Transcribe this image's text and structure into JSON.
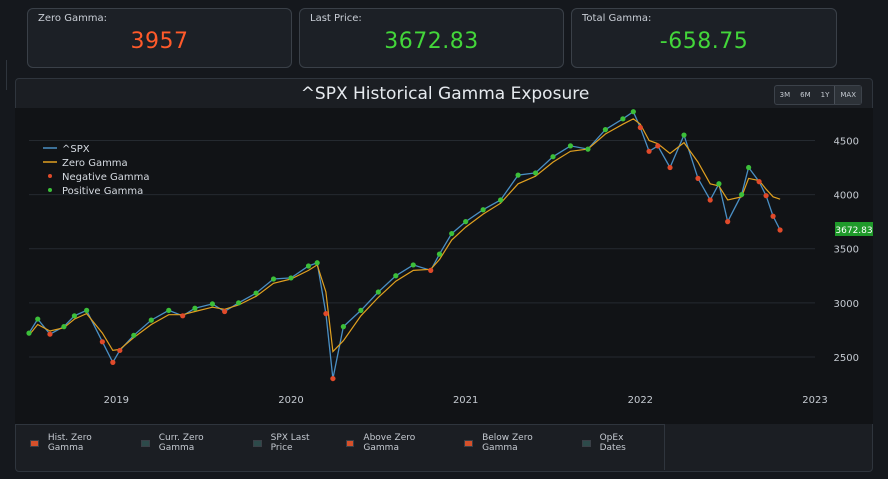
{
  "stats": {
    "zero_gamma": {
      "label": "Zero Gamma:",
      "value": "3957",
      "color": "#ff5a2a"
    },
    "last_price": {
      "label": "Last Price:",
      "value": "3672.83",
      "color": "#43d63a"
    },
    "total_gamma": {
      "label": "Total Gamma:",
      "value": "-658.75",
      "color": "#43d63a"
    }
  },
  "range_buttons": [
    "3M",
    "6M",
    "1Y",
    "MAX"
  ],
  "range_selected": "MAX",
  "bottom_legend": [
    {
      "label": "Hist. Zero Gamma",
      "color": "#d5502a"
    },
    {
      "label": "Curr. Zero Gamma",
      "color": "#2d4a4a"
    },
    {
      "label": "SPX Last Price",
      "color": "#2d4a4a"
    },
    {
      "label": "Above Zero Gamma",
      "color": "#d5502a"
    },
    {
      "label": "Below Zero Gamma",
      "color": "#d5502a"
    },
    {
      "label": "OpEx Dates",
      "color": "#2d4a4a"
    }
  ],
  "chart_data": {
    "type": "line",
    "title": "^SPX Historical Gamma Exposure",
    "xlabel": "",
    "ylabel": "",
    "x_tick_labels": [
      "2019",
      "2020",
      "2021",
      "2022",
      "2023"
    ],
    "y_tick_labels": [
      "2500",
      "3000",
      "3500",
      "4000",
      "4500"
    ],
    "xlim": [
      2018.5,
      2023.0
    ],
    "ylim": [
      2250,
      4800
    ],
    "legend_position": "top-left",
    "last_price_label": "3672.83",
    "series": [
      {
        "name": "^SPX",
        "color": "#4a8fc4",
        "x": [
          2018.5,
          2018.55,
          2018.62,
          2018.7,
          2018.76,
          2018.83,
          2018.92,
          2018.98,
          2019.02,
          2019.1,
          2019.2,
          2019.3,
          2019.38,
          2019.45,
          2019.55,
          2019.62,
          2019.7,
          2019.8,
          2019.9,
          2020.0,
          2020.1,
          2020.15,
          2020.2,
          2020.24,
          2020.3,
          2020.4,
          2020.5,
          2020.6,
          2020.7,
          2020.8,
          2020.85,
          2020.92,
          2021.0,
          2021.1,
          2021.2,
          2021.3,
          2021.4,
          2021.5,
          2021.6,
          2021.7,
          2021.8,
          2021.9,
          2021.96,
          2022.0,
          2022.05,
          2022.1,
          2022.17,
          2022.25,
          2022.33,
          2022.4,
          2022.45,
          2022.5,
          2022.58,
          2022.62,
          2022.68,
          2022.72,
          2022.76,
          2022.8
        ],
        "values": [
          2720,
          2850,
          2710,
          2780,
          2880,
          2930,
          2640,
          2450,
          2560,
          2700,
          2840,
          2930,
          2880,
          2950,
          2990,
          2920,
          3000,
          3090,
          3220,
          3230,
          3340,
          3370,
          2900,
          2300,
          2780,
          2930,
          3100,
          3250,
          3350,
          3300,
          3450,
          3640,
          3750,
          3860,
          3950,
          4180,
          4200,
          4350,
          4450,
          4420,
          4600,
          4700,
          4766,
          4620,
          4400,
          4450,
          4250,
          4550,
          4150,
          3950,
          4100,
          3750,
          4000,
          4250,
          4120,
          3990,
          3800,
          3672.83
        ]
      },
      {
        "name": "Zero Gamma",
        "color": "#e0a020",
        "x": [
          2018.5,
          2018.55,
          2018.62,
          2018.7,
          2018.76,
          2018.83,
          2018.92,
          2018.98,
          2019.02,
          2019.1,
          2019.2,
          2019.3,
          2019.38,
          2019.45,
          2019.55,
          2019.62,
          2019.7,
          2019.8,
          2019.9,
          2020.0,
          2020.1,
          2020.15,
          2020.2,
          2020.24,
          2020.3,
          2020.4,
          2020.5,
          2020.6,
          2020.7,
          2020.8,
          2020.85,
          2020.92,
          2021.0,
          2021.1,
          2021.2,
          2021.3,
          2021.4,
          2021.5,
          2021.6,
          2021.7,
          2021.8,
          2021.9,
          2021.96,
          2022.0,
          2022.05,
          2022.1,
          2022.17,
          2022.25,
          2022.33,
          2022.4,
          2022.45,
          2022.5,
          2022.58,
          2022.62,
          2022.68,
          2022.72,
          2022.76,
          2022.8
        ],
        "values": [
          2700,
          2800,
          2740,
          2770,
          2850,
          2900,
          2720,
          2560,
          2570,
          2680,
          2800,
          2890,
          2890,
          2920,
          2960,
          2940,
          2980,
          3060,
          3180,
          3220,
          3300,
          3350,
          3100,
          2550,
          2650,
          2880,
          3050,
          3200,
          3300,
          3310,
          3400,
          3580,
          3700,
          3820,
          3920,
          4100,
          4170,
          4300,
          4400,
          4420,
          4560,
          4650,
          4700,
          4650,
          4500,
          4470,
          4380,
          4480,
          4300,
          4100,
          4080,
          3950,
          3980,
          4150,
          4130,
          4050,
          3980,
          3957
        ]
      }
    ]
  }
}
